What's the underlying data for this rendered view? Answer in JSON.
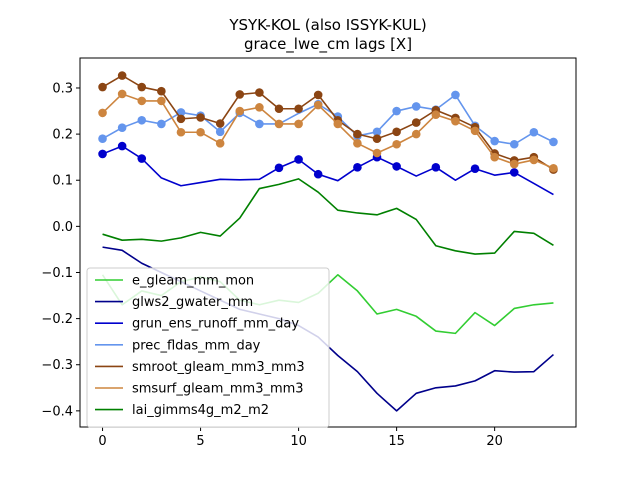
{
  "chart_data": {
    "type": "line",
    "title": "YSYK-KOL (also ISSYK-KUL)",
    "subtitle": "grace_lwe_cm lags [X]",
    "xlabel": "",
    "ylabel": "",
    "xlim": [
      -1.15,
      24.15
    ],
    "ylim": [
      -0.435,
      0.365
    ],
    "xticks": [
      0,
      5,
      10,
      15,
      20
    ],
    "yticks": [
      -0.4,
      -0.3,
      -0.2,
      -0.1,
      0.0,
      0.1,
      0.2,
      0.3
    ],
    "ytick_labels": [
      "−0.4",
      "−0.3",
      "−0.2",
      "−0.1",
      "0.0",
      "0.1",
      "0.2",
      "0.3"
    ],
    "grid": false,
    "legend_position": "lower-left",
    "x": [
      0,
      1,
      2,
      3,
      4,
      5,
      6,
      7,
      8,
      9,
      10,
      11,
      12,
      13,
      14,
      15,
      16,
      17,
      18,
      19,
      20,
      21,
      22,
      23
    ],
    "series": [
      {
        "name": "e_gleam_mm_mon",
        "color": "#32cd32",
        "values": [
          -0.105,
          -0.17,
          -0.14,
          -0.15,
          -0.12,
          -0.11,
          -0.12,
          -0.16,
          -0.17,
          -0.16,
          -0.165,
          -0.145,
          -0.105,
          -0.14,
          -0.19,
          -0.18,
          -0.195,
          -0.227,
          -0.232,
          -0.187,
          -0.215,
          -0.178,
          -0.17,
          -0.166
        ],
        "markers": []
      },
      {
        "name": "glws2_gwater_mm",
        "color": "#00008b",
        "values": [
          -0.045,
          -0.052,
          -0.08,
          -0.1,
          -0.12,
          -0.14,
          -0.16,
          -0.18,
          -0.19,
          -0.2,
          -0.215,
          -0.24,
          -0.28,
          -0.315,
          -0.362,
          -0.4,
          -0.362,
          -0.35,
          -0.346,
          -0.335,
          -0.313,
          -0.316,
          -0.315,
          -0.278
        ],
        "markers": []
      },
      {
        "name": "grun_ens_runoff_mm_day",
        "color": "#0000cd",
        "values": [
          0.157,
          0.174,
          0.147,
          0.105,
          0.088,
          0.095,
          0.102,
          0.101,
          0.102,
          0.127,
          0.145,
          0.113,
          0.099,
          0.128,
          0.15,
          0.13,
          0.109,
          0.128,
          0.1,
          0.125,
          0.111,
          0.117,
          0.093,
          0.069
        ],
        "markers": [
          0,
          1,
          2,
          9,
          10,
          11,
          13,
          14,
          15,
          17,
          19,
          21
        ]
      },
      {
        "name": "prec_fldas_mm_day",
        "color": "#6495ed",
        "values": [
          0.19,
          0.214,
          0.23,
          0.222,
          0.247,
          0.24,
          0.205,
          0.246,
          0.222,
          0.222,
          0.245,
          0.265,
          0.238,
          0.196,
          0.205,
          0.25,
          0.26,
          0.253,
          0.285,
          0.218,
          0.185,
          0.178,
          0.204,
          0.183
        ],
        "markers": [
          0,
          1,
          2,
          3,
          4,
          5,
          6,
          7,
          8,
          11,
          12,
          13,
          14,
          15,
          16,
          17,
          18,
          19,
          20,
          21,
          22,
          23
        ]
      },
      {
        "name": "smroot_gleam_mm3_mm3",
        "color": "#8b4513",
        "values": [
          0.302,
          0.327,
          0.302,
          0.293,
          0.233,
          0.236,
          0.223,
          0.286,
          0.29,
          0.255,
          0.255,
          0.285,
          0.23,
          0.2,
          0.19,
          0.205,
          0.225,
          0.252,
          0.235,
          0.215,
          0.158,
          0.143,
          0.15,
          0.123
        ],
        "markers": [
          0,
          1,
          2,
          3,
          4,
          5,
          6,
          7,
          8,
          9,
          10,
          11,
          12,
          13,
          14,
          15,
          16,
          17,
          18,
          19,
          20,
          21,
          22,
          23
        ]
      },
      {
        "name": "smsurf_gleam_mm3_mm3",
        "color": "#cd853f",
        "values": [
          0.246,
          0.287,
          0.272,
          0.272,
          0.204,
          0.204,
          0.18,
          0.25,
          0.258,
          0.222,
          0.222,
          0.263,
          0.222,
          0.18,
          0.159,
          0.178,
          0.2,
          0.242,
          0.228,
          0.207,
          0.15,
          0.135,
          0.144,
          0.126
        ],
        "markers": [
          0,
          1,
          2,
          3,
          4,
          5,
          6,
          7,
          8,
          9,
          10,
          11,
          12,
          13,
          14,
          15,
          16,
          17,
          18,
          19,
          20,
          21,
          22,
          23
        ]
      },
      {
        "name": "lai_gimms4g_m2_m2",
        "color": "#008000",
        "values": [
          -0.017,
          -0.03,
          -0.028,
          -0.032,
          -0.025,
          -0.013,
          -0.021,
          0.018,
          0.082,
          0.091,
          0.103,
          0.074,
          0.035,
          0.029,
          0.025,
          0.039,
          0.015,
          -0.042,
          -0.053,
          -0.06,
          -0.058,
          -0.011,
          -0.015,
          -0.041
        ],
        "markers": []
      }
    ]
  }
}
